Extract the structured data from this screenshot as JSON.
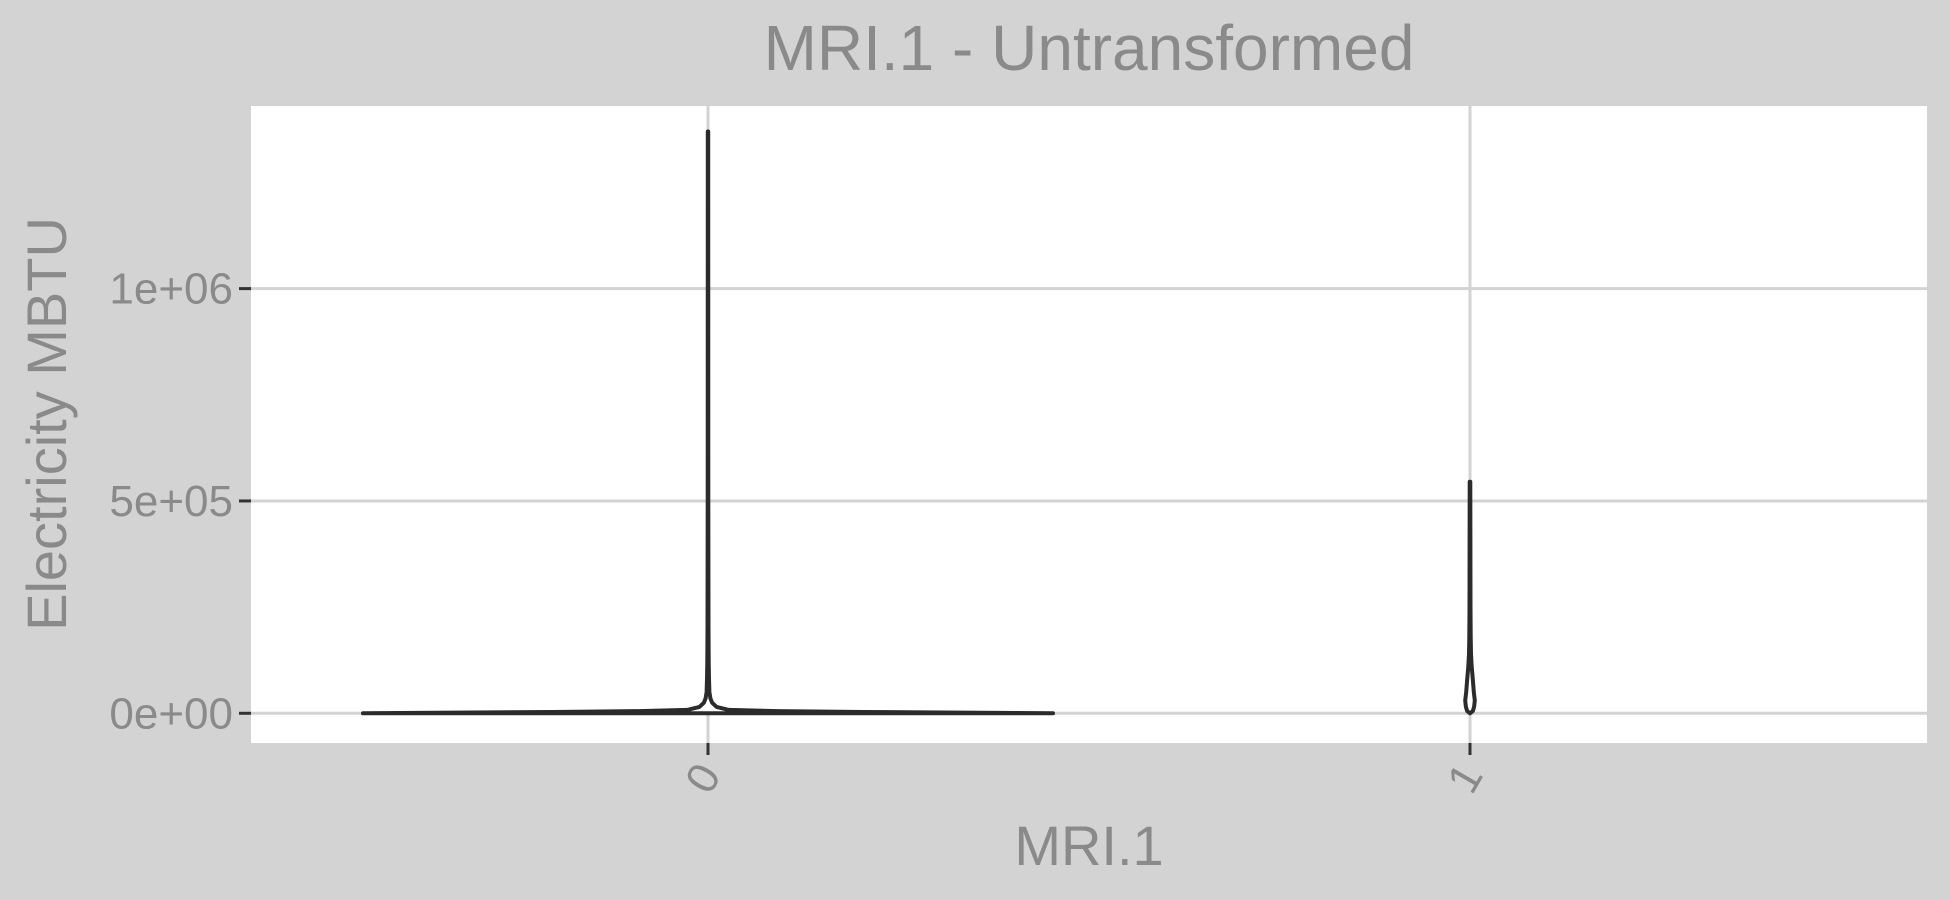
{
  "chart_data": {
    "type": "violin",
    "title": "MRI.1 - Untransformed",
    "xlabel": "MRI.1",
    "ylabel": "Electricity MBTU",
    "categories": [
      "0",
      "1"
    ],
    "ylim": [
      -70000,
      1430000
    ],
    "yticks": [
      0,
      500000,
      1000000
    ],
    "ytick_labels": [
      "0e+00",
      "5e+05",
      "1e+06"
    ],
    "grid": true,
    "series": [
      {
        "category": "0",
        "min": 0,
        "max": 1370000,
        "profile": [
          {
            "y": 0,
            "w": 1.0
          },
          {
            "y": 3000,
            "w": 0.45
          },
          {
            "y": 5000,
            "w": 0.2
          },
          {
            "y": 8000,
            "w": 0.06
          },
          {
            "y": 15000,
            "w": 0.025
          },
          {
            "y": 25000,
            "w": 0.012
          },
          {
            "y": 35000,
            "w": 0.007
          },
          {
            "y": 50000,
            "w": 0.004
          },
          {
            "y": 80000,
            "w": 0.003
          },
          {
            "y": 120000,
            "w": 0.002
          },
          {
            "y": 200000,
            "w": 0.0015
          },
          {
            "y": 500000,
            "w": 0.001
          },
          {
            "y": 1370000,
            "w": 0.0006
          }
        ]
      },
      {
        "category": "1",
        "min": 0,
        "max": 545000,
        "profile": [
          {
            "y": 0,
            "w": 0.0
          },
          {
            "y": 5000,
            "w": 0.008
          },
          {
            "y": 15000,
            "w": 0.012
          },
          {
            "y": 30000,
            "w": 0.014
          },
          {
            "y": 50000,
            "w": 0.011
          },
          {
            "y": 80000,
            "w": 0.008
          },
          {
            "y": 110000,
            "w": 0.005
          },
          {
            "y": 140000,
            "w": 0.003
          },
          {
            "y": 180000,
            "w": 0.002
          },
          {
            "y": 250000,
            "w": 0.0015
          },
          {
            "y": 545000,
            "w": 0.0008
          }
        ]
      }
    ],
    "colors": {
      "background": "#d3d3d3",
      "panel": "#ffffff",
      "grid": "#d3d3d3",
      "violin_stroke": "#2b2b2b",
      "text": "#8a8a8a"
    }
  }
}
